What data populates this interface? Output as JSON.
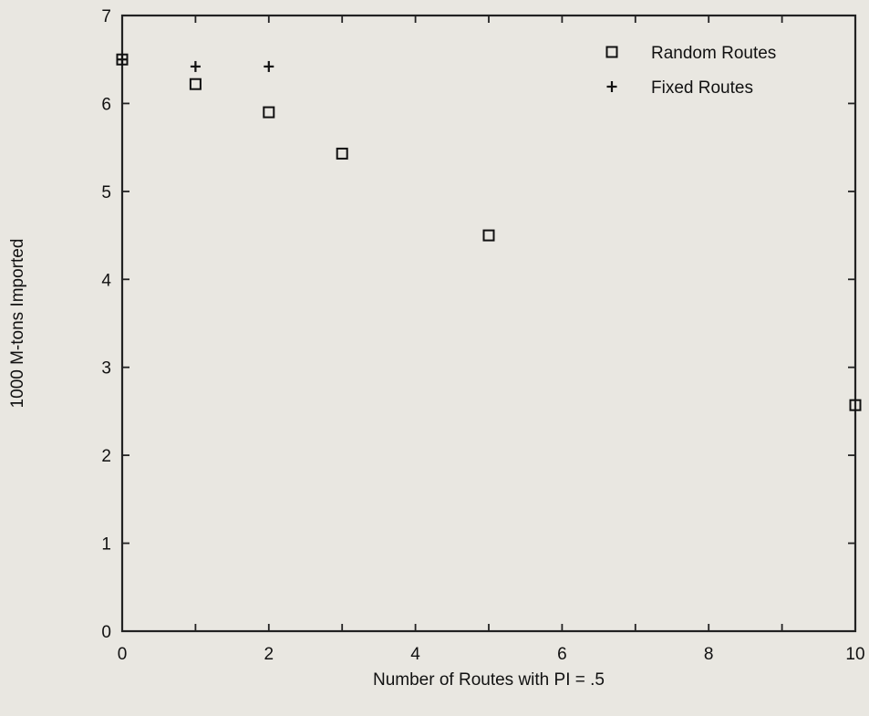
{
  "chart_data": {
    "type": "scatter",
    "title": "",
    "xlabel": "Number of Routes with PI = .5",
    "ylabel": "1000 M-tons Imported",
    "xlim": [
      0,
      10
    ],
    "ylim": [
      0,
      7
    ],
    "xticks": [
      0,
      2,
      4,
      6,
      8,
      10
    ],
    "yticks": [
      0,
      1,
      2,
      3,
      4,
      5,
      6,
      7
    ],
    "grid": false,
    "legend_position": "top-right",
    "series": [
      {
        "name": "Random Routes",
        "marker": "square",
        "points": [
          {
            "x": 0,
            "y": 6.5
          },
          {
            "x": 1,
            "y": 6.22
          },
          {
            "x": 2,
            "y": 5.9
          },
          {
            "x": 3,
            "y": 5.43
          },
          {
            "x": 5,
            "y": 4.5
          },
          {
            "x": 10,
            "y": 2.57
          }
        ]
      },
      {
        "name": "Fixed Routes",
        "marker": "plus",
        "points": [
          {
            "x": 0,
            "y": 6.5
          },
          {
            "x": 1,
            "y": 6.42
          },
          {
            "x": 2,
            "y": 6.42
          }
        ]
      }
    ]
  }
}
